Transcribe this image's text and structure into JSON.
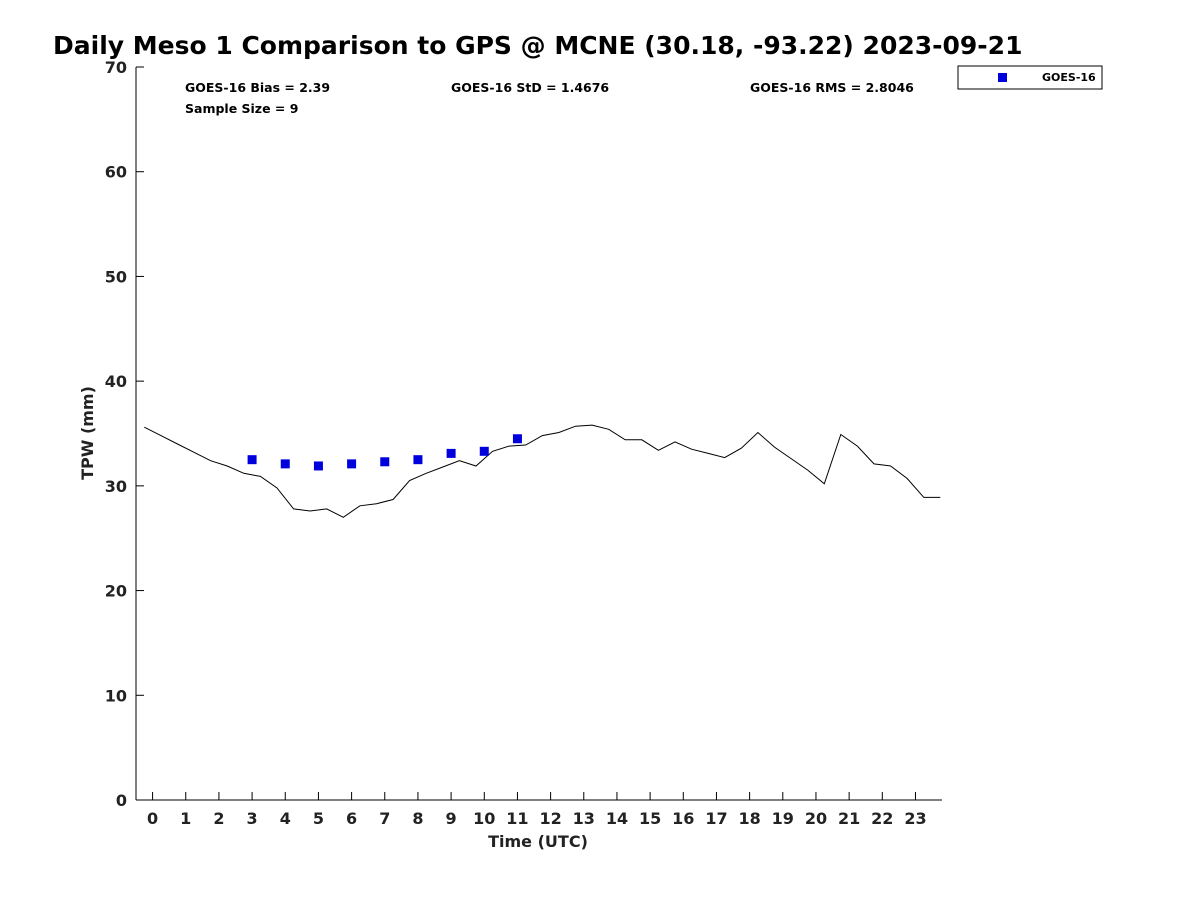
{
  "chart_data": {
    "type": "line",
    "title": "Daily Meso 1 Comparison to GPS @ MCNE (30.18, -93.22) 2023-09-21",
    "xlabel": "Time (UTC)",
    "ylabel": "TPW (mm)",
    "xlim": [
      -0.5,
      23.8
    ],
    "ylim": [
      0,
      70
    ],
    "x_ticks": [
      "0",
      "1",
      "2",
      "3",
      "4",
      "5",
      "6",
      "7",
      "8",
      "9",
      "10",
      "11",
      "12",
      "13",
      "14",
      "15",
      "16",
      "17",
      "18",
      "19",
      "20",
      "21",
      "22",
      "23"
    ],
    "y_ticks": [
      "0",
      "10",
      "20",
      "30",
      "40",
      "50",
      "60",
      "70"
    ],
    "grid": false,
    "stats": {
      "bias": "GOES-16 Bias = 2.39",
      "std": "GOES-16 StD = 1.4676",
      "rms": "GOES-16 RMS = 2.8046",
      "sample": "Sample Size = 9"
    },
    "legend": {
      "label": "GOES-16",
      "placement": "outside-top-right"
    },
    "colors": {
      "goes": "#0000dd",
      "gps": "#000000"
    },
    "series": [
      {
        "kind": "line",
        "x": [
          -0.25,
          0.25,
          0.75,
          1.25,
          1.75,
          2.25,
          2.75,
          3.25,
          3.75,
          4.25,
          4.75,
          5.25,
          5.75,
          6.25,
          6.75,
          7.25,
          7.75,
          8.25,
          8.75,
          9.25,
          9.75,
          10.25,
          10.75,
          11.25,
          11.75,
          12.25,
          12.75,
          13.25,
          13.75,
          14.25,
          14.75,
          15.25,
          15.75,
          16.25,
          16.75,
          17.25,
          17.75,
          18.25,
          18.75,
          19.25,
          19.75,
          20.25,
          20.75,
          21.25,
          21.75,
          22.25,
          22.75,
          23.25,
          23.75
        ],
        "y": [
          35.6,
          34.8,
          34.0,
          33.2,
          32.4,
          31.9,
          31.2,
          30.9,
          29.8,
          27.8,
          27.6,
          27.8,
          27.0,
          28.1,
          28.3,
          28.7,
          30.5,
          31.2,
          31.8,
          32.4,
          31.9,
          33.3,
          33.8,
          33.9,
          34.8,
          35.1,
          35.7,
          35.8,
          35.4,
          34.4,
          34.4,
          33.4,
          34.2,
          33.5,
          33.1,
          32.7,
          33.6,
          35.1,
          33.7,
          32.6,
          31.5,
          30.2,
          34.9,
          33.8,
          32.1,
          31.9,
          30.7,
          28.9,
          28.9
        ]
      },
      {
        "name": "GOES-16",
        "kind": "scatter",
        "x": [
          3,
          4,
          5,
          6,
          7,
          8,
          9,
          10,
          11
        ],
        "y": [
          32.5,
          32.1,
          31.9,
          32.1,
          32.3,
          32.5,
          33.1,
          33.3,
          34.5
        ]
      }
    ]
  }
}
